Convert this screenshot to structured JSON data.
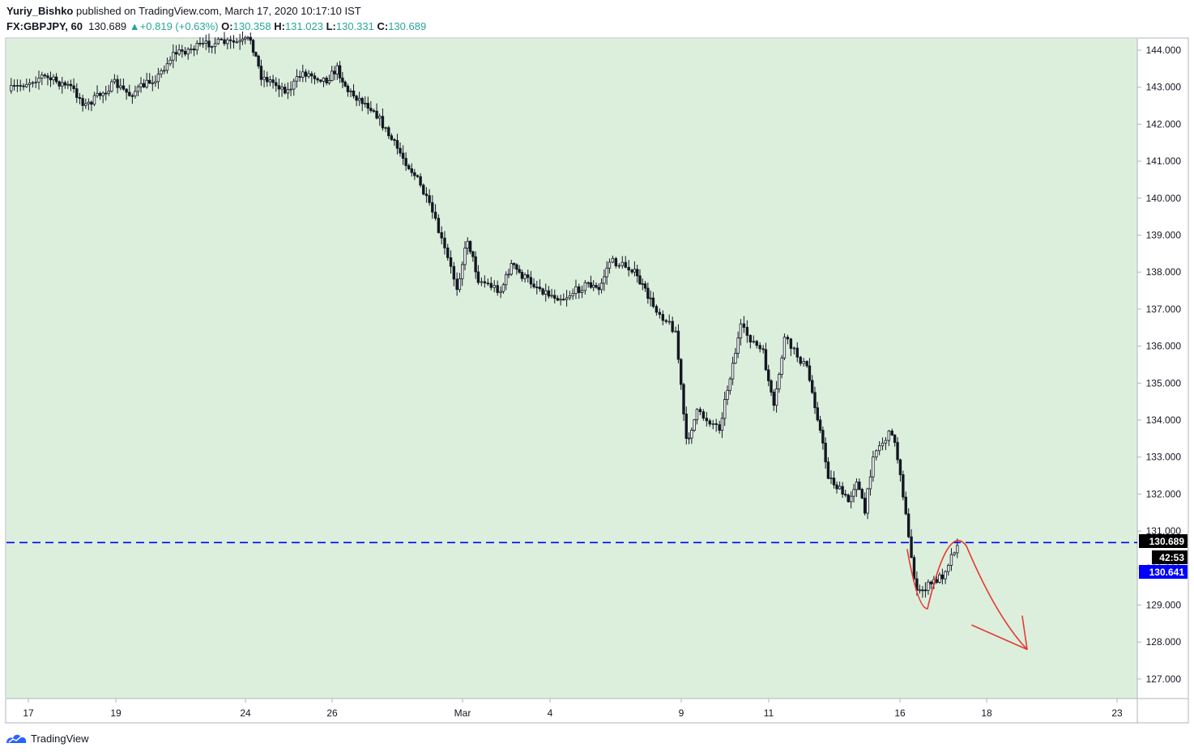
{
  "header": {
    "author": "Yuriy_Bishko",
    "published_text": "published on TradingView.com, March 17, 2020 10:17:10 IST",
    "symbol": "FX:GBPJPY, 60",
    "last": "130.689",
    "change_arrow": "▲",
    "change": "+0.819 (+0.63%)",
    "o_label": "O:",
    "o_value": "130.358",
    "h_label": "H:",
    "h_value": "131.023",
    "l_label": "L:",
    "l_value": "130.331",
    "c_label": "C:",
    "c_value": "130.689"
  },
  "footer": {
    "brand": "TradingView",
    "logo_icon": "tradingview-logo-icon"
  },
  "colors": {
    "plot_bg": "#dcefdc",
    "candle": "#131722",
    "price_line": "#0000ff",
    "drawing": "#e53935",
    "accent": "#26a69a",
    "dark_badge": "#000000",
    "blue_badge": "#0000ff"
  },
  "chart_data": {
    "type": "candlestick",
    "symbol": "GBPJPY",
    "interval": "60",
    "y_ticks": [
      "144.000",
      "143.000",
      "142.000",
      "141.000",
      "140.000",
      "139.000",
      "138.000",
      "137.000",
      "136.000",
      "135.000",
      "134.000",
      "133.000",
      "132.000",
      "131.000",
      "130.000",
      "129.000",
      "128.000",
      "127.000"
    ],
    "ylim": [
      126.4,
      144.3
    ],
    "x_ticks": [
      "17",
      "19",
      "24",
      "26",
      "Mar",
      "4",
      "9",
      "11",
      "16",
      "18",
      "23"
    ],
    "price_badges": {
      "last_price": "130.689",
      "countdown": "42:53",
      "bid": "130.641"
    },
    "price_line": 130.689,
    "approx_close_path": [
      {
        "x": "Feb 17",
        "y": 142.9
      },
      {
        "x": "Feb 17",
        "y": 143.3
      },
      {
        "x": "Feb 18",
        "y": 143.0
      },
      {
        "x": "Feb 18",
        "y": 142.5
      },
      {
        "x": "Feb 19",
        "y": 143.1
      },
      {
        "x": "Feb 19",
        "y": 142.8
      },
      {
        "x": "Feb 20",
        "y": 143.3
      },
      {
        "x": "Feb 20",
        "y": 143.9
      },
      {
        "x": "Feb 21",
        "y": 144.2
      },
      {
        "x": "Feb 24",
        "y": 144.2
      },
      {
        "x": "Feb 24",
        "y": 144.3
      },
      {
        "x": "Feb 24",
        "y": 143.3
      },
      {
        "x": "Feb 25",
        "y": 142.9
      },
      {
        "x": "Feb 25",
        "y": 143.4
      },
      {
        "x": "Feb 26",
        "y": 143.2
      },
      {
        "x": "Feb 26",
        "y": 143.5
      },
      {
        "x": "Feb 26",
        "y": 142.9
      },
      {
        "x": "Feb 27",
        "y": 142.4
      },
      {
        "x": "Feb 27",
        "y": 141.7
      },
      {
        "x": "Feb 28",
        "y": 140.5
      },
      {
        "x": "Feb 28",
        "y": 139.6
      },
      {
        "x": "Mar 2",
        "y": 137.6
      },
      {
        "x": "Mar 2",
        "y": 138.9
      },
      {
        "x": "Mar 2",
        "y": 137.8
      },
      {
        "x": "Mar 3",
        "y": 137.5
      },
      {
        "x": "Mar 3",
        "y": 138.2
      },
      {
        "x": "Mar 3",
        "y": 137.9
      },
      {
        "x": "Mar 4",
        "y": 137.4
      },
      {
        "x": "Mar 4",
        "y": 137.3
      },
      {
        "x": "Mar 5",
        "y": 137.7
      },
      {
        "x": "Mar 5",
        "y": 137.5
      },
      {
        "x": "Mar 5",
        "y": 138.3
      },
      {
        "x": "Mar 6",
        "y": 138.1
      },
      {
        "x": "Mar 6",
        "y": 137.6
      },
      {
        "x": "Mar 6",
        "y": 137.1
      },
      {
        "x": "Mar 9",
        "y": 136.4
      },
      {
        "x": "Mar 9",
        "y": 133.4
      },
      {
        "x": "Mar 9",
        "y": 134.2
      },
      {
        "x": "Mar 10",
        "y": 133.8
      },
      {
        "x": "Mar 10",
        "y": 135.2
      },
      {
        "x": "Mar 10",
        "y": 136.5
      },
      {
        "x": "Mar 11",
        "y": 135.8
      },
      {
        "x": "Mar 11",
        "y": 134.3
      },
      {
        "x": "Mar 11",
        "y": 136.2
      },
      {
        "x": "Mar 12",
        "y": 135.4
      },
      {
        "x": "Mar 12",
        "y": 134.1
      },
      {
        "x": "Mar 12",
        "y": 132.5
      },
      {
        "x": "Mar 13",
        "y": 131.8
      },
      {
        "x": "Mar 13",
        "y": 132.4
      },
      {
        "x": "Mar 13",
        "y": 131.5
      },
      {
        "x": "Mar 13",
        "y": 133.1
      },
      {
        "x": "Mar 16",
        "y": 133.7
      },
      {
        "x": "Mar 16",
        "y": 132.6
      },
      {
        "x": "Mar 16",
        "y": 130.8
      },
      {
        "x": "Mar 16",
        "y": 129.3
      },
      {
        "x": "Mar 17",
        "y": 129.8
      },
      {
        "x": "Mar 17",
        "y": 130.689
      }
    ],
    "drawing": {
      "type": "freehand",
      "color": "red",
      "description_points": [
        {
          "x": "Mar 16",
          "y": 130.5
        },
        {
          "x": "Mar 16",
          "y": 128.9
        },
        {
          "x": "Mar 17",
          "y": 130.6
        },
        {
          "x": "Mar 19",
          "y": 127.8
        },
        {
          "x": "Mar 19",
          "y": 128.7
        }
      ]
    },
    "grid": false,
    "legend": "none"
  }
}
